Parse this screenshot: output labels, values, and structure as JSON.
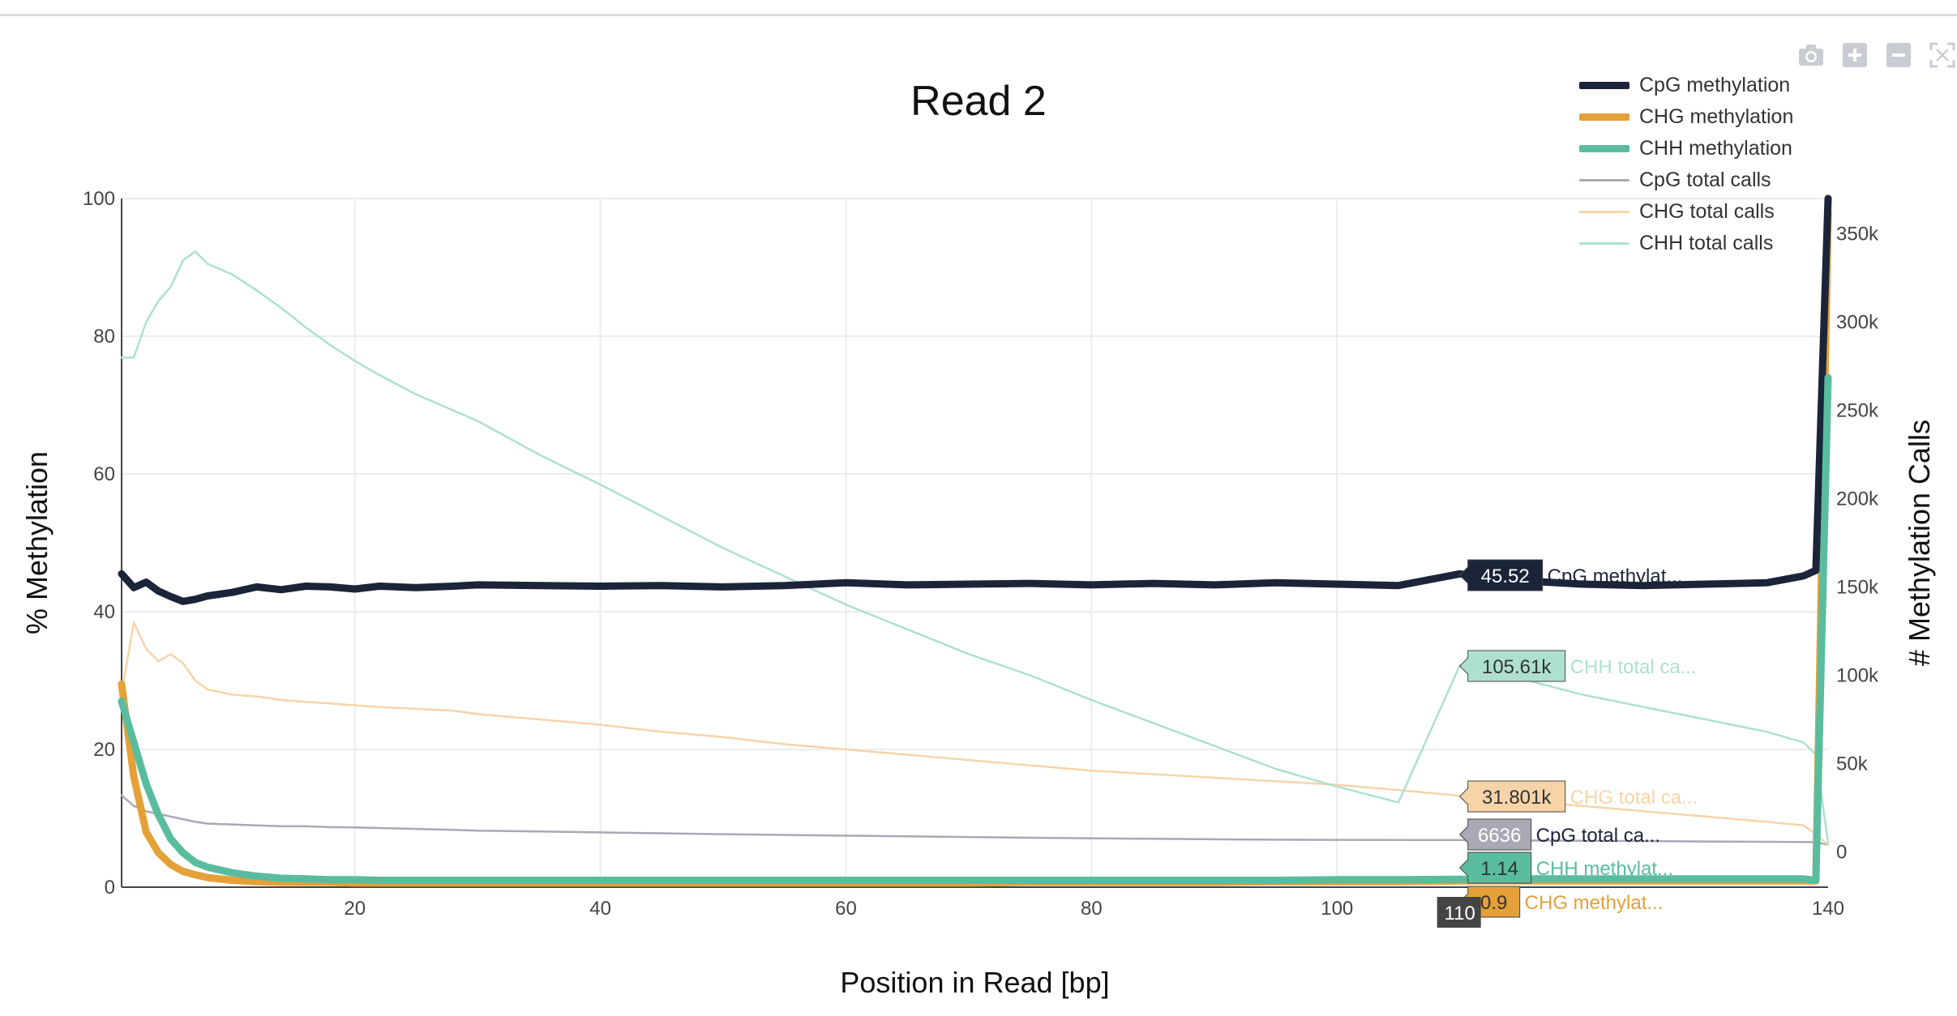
{
  "title": "Read 2",
  "modebar": {
    "icons": [
      "camera-icon",
      "zoom-in-icon",
      "zoom-out-icon",
      "autoscale-icon"
    ]
  },
  "colors": {
    "cpg": "#1b2439",
    "chg": "#e5a038",
    "chh": "#5abc9e",
    "cpg_total": "#a9a8b5",
    "chg_total": "#f7d4a8",
    "chh_total": "#aee0cf",
    "grid": "#ececec",
    "hover_x_bg": "#444444"
  },
  "legend": [
    {
      "key": "cpg",
      "label": "CpG methylation"
    },
    {
      "key": "chg",
      "label": "CHG methylation"
    },
    {
      "key": "chh",
      "label": "CHH methylation"
    },
    {
      "key": "cpg_total",
      "label": "CpG total calls"
    },
    {
      "key": "chg_total",
      "label": "CHG total calls"
    },
    {
      "key": "chh_total",
      "label": "CHH total calls"
    }
  ],
  "hover": {
    "x_label": "110",
    "labels": [
      {
        "key": "cpg",
        "value": "45.52",
        "name": "CpG methylat..."
      },
      {
        "key": "chh_total",
        "value": "105.61k",
        "name": "CHH total ca..."
      },
      {
        "key": "chg_total",
        "value": "31.801k",
        "name": "CHG total ca..."
      },
      {
        "key": "cpg_total",
        "value": "6636",
        "name": "CpG total ca..."
      },
      {
        "key": "chh",
        "value": "1.14",
        "name": "CHH methylat..."
      },
      {
        "key": "chg",
        "value": "0.9",
        "name": "CHG methylat..."
      }
    ]
  },
  "chart_data": {
    "type": "line",
    "title": "Read 2",
    "xlabel": "Position in Read [bp]",
    "ylabel": "% Methylation",
    "y2label": "# Methylation Calls",
    "xlim": [
      1,
      140
    ],
    "ylim": [
      0,
      100
    ],
    "y2lim": [
      -20000,
      370000
    ],
    "x_ticks": [
      "20",
      "40",
      "60",
      "80",
      "100",
      "140"
    ],
    "y_ticks": [
      "0",
      "20",
      "40",
      "60",
      "80",
      "100"
    ],
    "y2_ticks": [
      "0",
      "50k",
      "100k",
      "150k",
      "200k",
      "250k",
      "300k",
      "350k"
    ],
    "grid": true,
    "legend_position": "top-right",
    "x": [
      1,
      2,
      3,
      4,
      5,
      6,
      7,
      8,
      10,
      12,
      14,
      16,
      18,
      20,
      22,
      25,
      28,
      30,
      35,
      40,
      45,
      50,
      55,
      60,
      65,
      70,
      75,
      80,
      85,
      90,
      95,
      100,
      105,
      110,
      115,
      120,
      125,
      130,
      135,
      138,
      139,
      140
    ],
    "series": [
      {
        "key": "cpg",
        "name": "CpG methylation",
        "axis": "y",
        "width": 9,
        "values": [
          45.5,
          43.5,
          44.3,
          43.0,
          42.2,
          41.5,
          41.8,
          42.3,
          42.8,
          43.6,
          43.2,
          43.7,
          43.6,
          43.3,
          43.7,
          43.5,
          43.7,
          43.9,
          43.8,
          43.7,
          43.8,
          43.6,
          43.8,
          44.2,
          43.9,
          44.0,
          44.1,
          43.9,
          44.1,
          43.9,
          44.2,
          44.0,
          43.8,
          45.5,
          44.5,
          44.0,
          43.8,
          44.0,
          44.2,
          45.2,
          46.0,
          100
        ]
      },
      {
        "key": "chg",
        "name": "CHG methylation",
        "axis": "y",
        "width": 9,
        "values": [
          29.5,
          16.0,
          8.0,
          5.0,
          3.3,
          2.3,
          1.8,
          1.4,
          1.0,
          0.8,
          0.7,
          0.7,
          0.7,
          0.6,
          0.6,
          0.6,
          0.6,
          0.6,
          0.6,
          0.6,
          0.6,
          0.6,
          0.6,
          0.6,
          0.6,
          0.6,
          0.7,
          0.7,
          0.7,
          0.7,
          0.8,
          0.8,
          0.8,
          0.9,
          0.9,
          0.9,
          0.9,
          0.9,
          0.9,
          0.9,
          0.9,
          98.0
        ]
      },
      {
        "key": "chh",
        "name": "CHH methylation",
        "axis": "y",
        "width": 9,
        "values": [
          27.0,
          21.0,
          15.0,
          10.5,
          7.0,
          5.0,
          3.6,
          2.9,
          2.1,
          1.6,
          1.3,
          1.2,
          1.1,
          1.1,
          1.0,
          1.0,
          1.0,
          1.0,
          1.0,
          1.0,
          1.0,
          1.0,
          1.0,
          1.0,
          1.0,
          1.0,
          1.0,
          1.0,
          1.0,
          1.0,
          1.0,
          1.1,
          1.1,
          1.14,
          1.2,
          1.2,
          1.2,
          1.2,
          1.2,
          1.2,
          1.0,
          74.0
        ]
      },
      {
        "key": "cpg_total",
        "name": "CpG total calls",
        "axis": "y2",
        "width": 2.5,
        "values": [
          32000,
          26000,
          23000,
          21500,
          20000,
          18500,
          17000,
          16000,
          15500,
          15000,
          14500,
          14500,
          14000,
          13800,
          13500,
          13000,
          12500,
          12000,
          11500,
          11000,
          10500,
          10000,
          9600,
          9200,
          8800,
          8400,
          8000,
          7700,
          7400,
          7100,
          6900,
          6800,
          6700,
          6636,
          6500,
          6300,
          6100,
          5900,
          5700,
          5600,
          5500,
          4000
        ]
      },
      {
        "key": "chg_total",
        "name": "CHG total calls",
        "axis": "y2",
        "width": 2.5,
        "values": [
          90000,
          130000,
          115000,
          108000,
          112000,
          107000,
          97000,
          92000,
          89000,
          88000,
          86000,
          85000,
          84000,
          83000,
          82000,
          81000,
          80000,
          78000,
          75000,
          72000,
          68000,
          65000,
          61000,
          58000,
          55000,
          52000,
          49000,
          46000,
          44000,
          42000,
          40000,
          38000,
          35000,
          31801,
          29000,
          26000,
          23000,
          20000,
          17000,
          15000,
          10000,
          4000
        ]
      },
      {
        "key": "chh_total",
        "name": "CHH total calls",
        "axis": "y2",
        "width": 2.5,
        "values": [
          280000,
          280000,
          300000,
          312000,
          320000,
          335000,
          340000,
          333000,
          327000,
          318000,
          308000,
          297000,
          287000,
          278000,
          270000,
          259000,
          250000,
          244000,
          225000,
          208000,
          190000,
          172000,
          156000,
          140000,
          126000,
          112000,
          100000,
          86000,
          73000,
          60000,
          47000,
          37000,
          28000,
          105610,
          98000,
          89000,
          82000,
          75000,
          68000,
          62000,
          55000,
          5000
        ]
      }
    ]
  }
}
